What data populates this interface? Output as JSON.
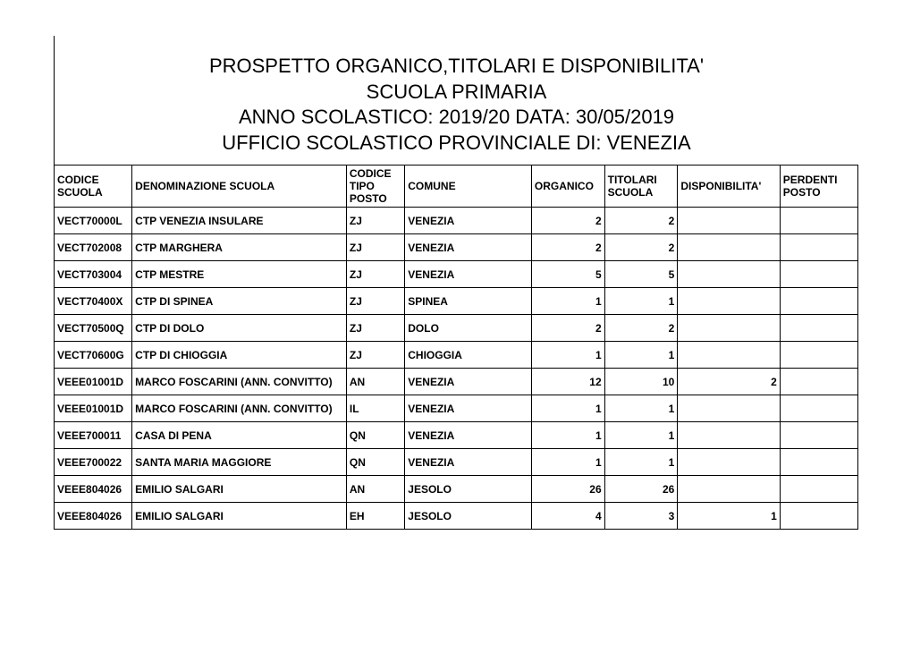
{
  "header": {
    "line1": "PROSPETTO ORGANICO,TITOLARI E DISPONIBILITA'",
    "line2": "SCUOLA PRIMARIA",
    "line3": "ANNO SCOLASTICO: 2019/20 DATA: 30/05/2019",
    "line4": "UFFICIO SCOLASTICO PROVINCIALE DI: VENEZIA"
  },
  "columns": {
    "codice": "CODICE SCUOLA",
    "denom": "DENOMINAZIONE SCUOLA",
    "tipo": "CODICE TIPO POSTO",
    "comune": "COMUNE",
    "organico": "ORGANICO",
    "titolari": "TITOLARI SCUOLA",
    "disp": "DISPONIBILITA'",
    "perdenti": "PERDENTI POSTO"
  },
  "rows": [
    {
      "codice": "VECT70000L",
      "denom": "CTP VENEZIA INSULARE",
      "tipo": "ZJ",
      "comune": "VENEZIA",
      "organico": "2",
      "titolari": "2",
      "disp": "",
      "perdenti": ""
    },
    {
      "codice": "VECT702008",
      "denom": "CTP MARGHERA",
      "tipo": "ZJ",
      "comune": "VENEZIA",
      "organico": "2",
      "titolari": "2",
      "disp": "",
      "perdenti": ""
    },
    {
      "codice": "VECT703004",
      "denom": "CTP MESTRE",
      "tipo": "ZJ",
      "comune": "VENEZIA",
      "organico": "5",
      "titolari": "5",
      "disp": "",
      "perdenti": ""
    },
    {
      "codice": "VECT70400X",
      "denom": "CTP DI SPINEA",
      "tipo": "ZJ",
      "comune": "SPINEA",
      "organico": "1",
      "titolari": "1",
      "disp": "",
      "perdenti": ""
    },
    {
      "codice": "VECT70500Q",
      "denom": "CTP DI DOLO",
      "tipo": "ZJ",
      "comune": "DOLO",
      "organico": "2",
      "titolari": "2",
      "disp": "",
      "perdenti": ""
    },
    {
      "codice": "VECT70600G",
      "denom": "CTP DI CHIOGGIA",
      "tipo": "ZJ",
      "comune": "CHIOGGIA",
      "organico": "1",
      "titolari": "1",
      "disp": "",
      "perdenti": ""
    },
    {
      "codice": "VEEE01001D",
      "denom": "MARCO FOSCARINI (ANN. CONVITTO)",
      "tipo": "AN",
      "comune": "VENEZIA",
      "organico": "12",
      "titolari": "10",
      "disp": "2",
      "perdenti": ""
    },
    {
      "codice": "VEEE01001D",
      "denom": "MARCO FOSCARINI (ANN. CONVITTO)",
      "tipo": "IL",
      "comune": "VENEZIA",
      "organico": "1",
      "titolari": "1",
      "disp": "",
      "perdenti": ""
    },
    {
      "codice": "VEEE700011",
      "denom": "CASA DI PENA",
      "tipo": "QN",
      "comune": "VENEZIA",
      "organico": "1",
      "titolari": "1",
      "disp": "",
      "perdenti": ""
    },
    {
      "codice": "VEEE700022",
      "denom": "SANTA MARIA MAGGIORE",
      "tipo": "QN",
      "comune": "VENEZIA",
      "organico": "1",
      "titolari": "1",
      "disp": "",
      "perdenti": ""
    },
    {
      "codice": "VEEE804026",
      "denom": "EMILIO SALGARI",
      "tipo": "AN",
      "comune": "JESOLO",
      "organico": "26",
      "titolari": "26",
      "disp": "",
      "perdenti": ""
    },
    {
      "codice": "VEEE804026",
      "denom": "EMILIO SALGARI",
      "tipo": "EH",
      "comune": "JESOLO",
      "organico": "4",
      "titolari": "3",
      "disp": "1",
      "perdenti": ""
    }
  ],
  "styling": {
    "background_color": "#ffffff",
    "border_color": "#000000",
    "title_fontsize": 22,
    "table_fontsize": 12
  }
}
